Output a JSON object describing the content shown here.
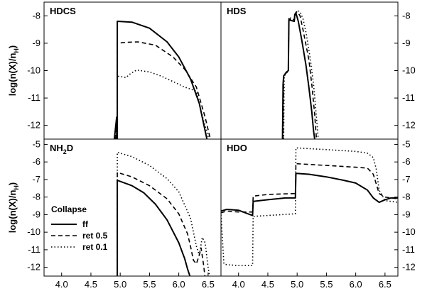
{
  "chart_data": [
    {
      "type": "line",
      "panel": "top-left",
      "title": "HDCS",
      "ylabel": "log(n(X)/n_H)",
      "xlim": [
        3.7,
        6.72
      ],
      "ylim": [
        -12.5,
        -7.5
      ],
      "yticks": [
        -8,
        -9,
        -10,
        -11,
        -12
      ],
      "xticks": [],
      "series": [
        {
          "name": "ff",
          "style": "solid",
          "x": [
            4.9,
            4.94,
            4.94,
            4.95,
            4.95,
            5.2,
            5.5,
            5.8,
            6.0,
            6.2,
            6.35,
            6.45,
            6.5,
            6.55
          ],
          "y": [
            -12.5,
            -11.7,
            -12.5,
            -12.5,
            -8.2,
            -8.23,
            -8.45,
            -8.95,
            -9.5,
            -10.3,
            -11.2,
            -12.2,
            -12.7,
            -13
          ]
        },
        {
          "name": "ret 0.5",
          "style": "dashed",
          "x": [
            4.92,
            4.95,
            4.95,
            5.1,
            5.3,
            5.6,
            5.9,
            6.1,
            6.3,
            6.45,
            6.55
          ],
          "y": [
            -12.5,
            -11.9,
            -9.0,
            -8.97,
            -8.95,
            -9.07,
            -9.5,
            -9.95,
            -10.6,
            -11.7,
            -12.6
          ]
        },
        {
          "name": "ret 0.1",
          "style": "dotted",
          "x": [
            4.93,
            4.95,
            4.95,
            5.1,
            5.18,
            5.28,
            5.5,
            5.7,
            5.9,
            6.1,
            6.3,
            6.42,
            6.5,
            6.55
          ],
          "y": [
            -12.5,
            -12.2,
            -10.2,
            -10.25,
            -10.1,
            -9.98,
            -10.05,
            -10.2,
            -10.4,
            -10.6,
            -10.75,
            -11.8,
            -12.4,
            -12.8
          ]
        }
      ]
    },
    {
      "type": "line",
      "panel": "top-right",
      "title": "HDS",
      "xlim": [
        3.7,
        6.72
      ],
      "ylim": [
        -12.5,
        -7.5
      ],
      "yticks": [
        -8,
        -9,
        -10,
        -11,
        -12
      ],
      "xticks": [],
      "series": [
        {
          "name": "ff",
          "style": "solid",
          "x": [
            4.75,
            4.76,
            4.77,
            4.8,
            4.82,
            4.85,
            4.86,
            4.95,
            4.96,
            4.98,
            5.02,
            5.08,
            5.15,
            5.2,
            5.25,
            5.28,
            5.3
          ],
          "y": [
            -12.5,
            -10.5,
            -10.2,
            -10.1,
            -10.05,
            -10.0,
            -8.15,
            -8.2,
            -7.95,
            -7.9,
            -8.2,
            -8.9,
            -9.8,
            -10.6,
            -11.5,
            -12.2,
            -12.5
          ]
        },
        {
          "name": "ret 0.5",
          "style": "dashed",
          "x": [
            4.76,
            4.77,
            4.8,
            4.85,
            4.86,
            4.95,
            4.97,
            5.0,
            5.05,
            5.1,
            5.2,
            5.25,
            5.3,
            5.33
          ],
          "y": [
            -12.5,
            -10.3,
            -10.1,
            -10.05,
            -8.1,
            -8.2,
            -7.9,
            -7.85,
            -8.0,
            -8.5,
            -9.6,
            -10.5,
            -11.6,
            -12.5
          ]
        },
        {
          "name": "ret 0.1",
          "style": "dotted",
          "x": [
            4.77,
            4.78,
            4.85,
            4.86,
            4.95,
            4.98,
            5.0,
            5.05,
            5.1,
            5.15,
            5.22,
            5.28,
            5.33,
            5.36
          ],
          "y": [
            -12.5,
            -10.2,
            -10.0,
            -8.05,
            -8.15,
            -7.9,
            -7.8,
            -7.85,
            -8.1,
            -8.6,
            -9.5,
            -10.5,
            -11.7,
            -12.5
          ]
        }
      ]
    },
    {
      "type": "line",
      "panel": "bottom-left",
      "title": "NH2D",
      "ylabel": "log(n(X)/n_H)",
      "xlim": [
        3.7,
        6.72
      ],
      "ylim": [
        -12.5,
        -4.7
      ],
      "yticks": [
        -5,
        -6,
        -7,
        -8,
        -9,
        -10,
        -11,
        -12
      ],
      "xticks": [
        4.0,
        4.5,
        5.0,
        5.5,
        6.0,
        6.5
      ],
      "legend": {
        "title": "Collapse",
        "position": "lower-left"
      },
      "series": [
        {
          "name": "ff",
          "style": "solid",
          "x": [
            4.95,
            4.95,
            5.2,
            5.4,
            5.6,
            5.8,
            6.0,
            6.1,
            6.15,
            6.2
          ],
          "y": [
            -12.5,
            -7.05,
            -7.35,
            -7.75,
            -8.4,
            -9.3,
            -10.6,
            -11.5,
            -12.1,
            -12.6
          ]
        },
        {
          "name": "ret 0.5",
          "style": "dashed",
          "x": [
            4.95,
            4.95,
            5.2,
            5.5,
            5.8,
            6.0,
            6.15,
            6.2,
            6.25,
            6.3,
            6.35,
            6.38,
            6.42,
            6.45
          ],
          "y": [
            -12.5,
            -6.6,
            -6.85,
            -7.35,
            -8.1,
            -8.95,
            -10.1,
            -10.8,
            -11.6,
            -11.8,
            -11.3,
            -10.9,
            -11.8,
            -12.6
          ]
        },
        {
          "name": "ret 0.1",
          "style": "dotted",
          "x": [
            4.95,
            4.95,
            5.2,
            5.5,
            5.8,
            6.0,
            6.2,
            6.3,
            6.35,
            6.4,
            6.45,
            6.5,
            6.53
          ],
          "y": [
            -12.5,
            -5.45,
            -5.7,
            -6.2,
            -6.95,
            -7.7,
            -9.2,
            -10.8,
            -11.3,
            -10.3,
            -10.6,
            -12.0,
            -12.6
          ]
        }
      ]
    },
    {
      "type": "line",
      "panel": "bottom-right",
      "title": "HDO",
      "xlim": [
        3.7,
        6.72
      ],
      "ylim": [
        -12.5,
        -4.7
      ],
      "yticks": [
        -5,
        -6,
        -7,
        -8,
        -9,
        -10,
        -11,
        -12
      ],
      "xticks": [
        4.0,
        4.5,
        5.0,
        5.5,
        6.0,
        6.5
      ],
      "series": [
        {
          "name": "ff",
          "style": "solid",
          "x": [
            3.7,
            3.8,
            4.0,
            4.2,
            4.24,
            4.25,
            4.5,
            4.8,
            4.97,
            4.98,
            5.2,
            5.5,
            5.8,
            6.0,
            6.2,
            6.3,
            6.4,
            6.5,
            6.6,
            6.72
          ],
          "y": [
            -8.8,
            -8.7,
            -8.75,
            -9.0,
            -9.05,
            -8.25,
            -8.15,
            -8.05,
            -8.05,
            -6.65,
            -6.7,
            -6.85,
            -7.05,
            -7.2,
            -7.6,
            -8.05,
            -8.3,
            -8.15,
            -8.05,
            -8.05
          ]
        },
        {
          "name": "ret 0.5",
          "style": "dashed",
          "x": [
            3.7,
            3.8,
            4.0,
            4.24,
            4.25,
            4.5,
            4.97,
            4.98,
            5.5,
            6.0,
            6.2,
            6.3,
            6.4,
            6.5,
            6.72
          ],
          "y": [
            -8.9,
            -8.8,
            -8.85,
            -8.85,
            -7.95,
            -7.85,
            -7.8,
            -6.1,
            -6.2,
            -6.3,
            -6.35,
            -6.7,
            -7.8,
            -8.0,
            -8.1
          ]
        },
        {
          "name": "ret 0.1",
          "style": "dotted",
          "x": [
            3.7,
            3.75,
            3.8,
            4.0,
            4.2,
            4.24,
            4.25,
            4.5,
            4.97,
            4.98,
            5.5,
            6.0,
            6.2,
            6.3,
            6.35,
            6.4,
            6.5,
            6.72
          ],
          "y": [
            -9.0,
            -11.8,
            -11.85,
            -11.9,
            -11.9,
            -11.9,
            -9.1,
            -9.05,
            -8.95,
            -5.2,
            -5.3,
            -5.4,
            -5.5,
            -5.75,
            -6.4,
            -7.6,
            -8.2,
            -8.3
          ]
        }
      ]
    }
  ],
  "legend_labels": {
    "title": "Collapse",
    "items": [
      "ff",
      "ret 0.5",
      "ret 0.1"
    ]
  }
}
